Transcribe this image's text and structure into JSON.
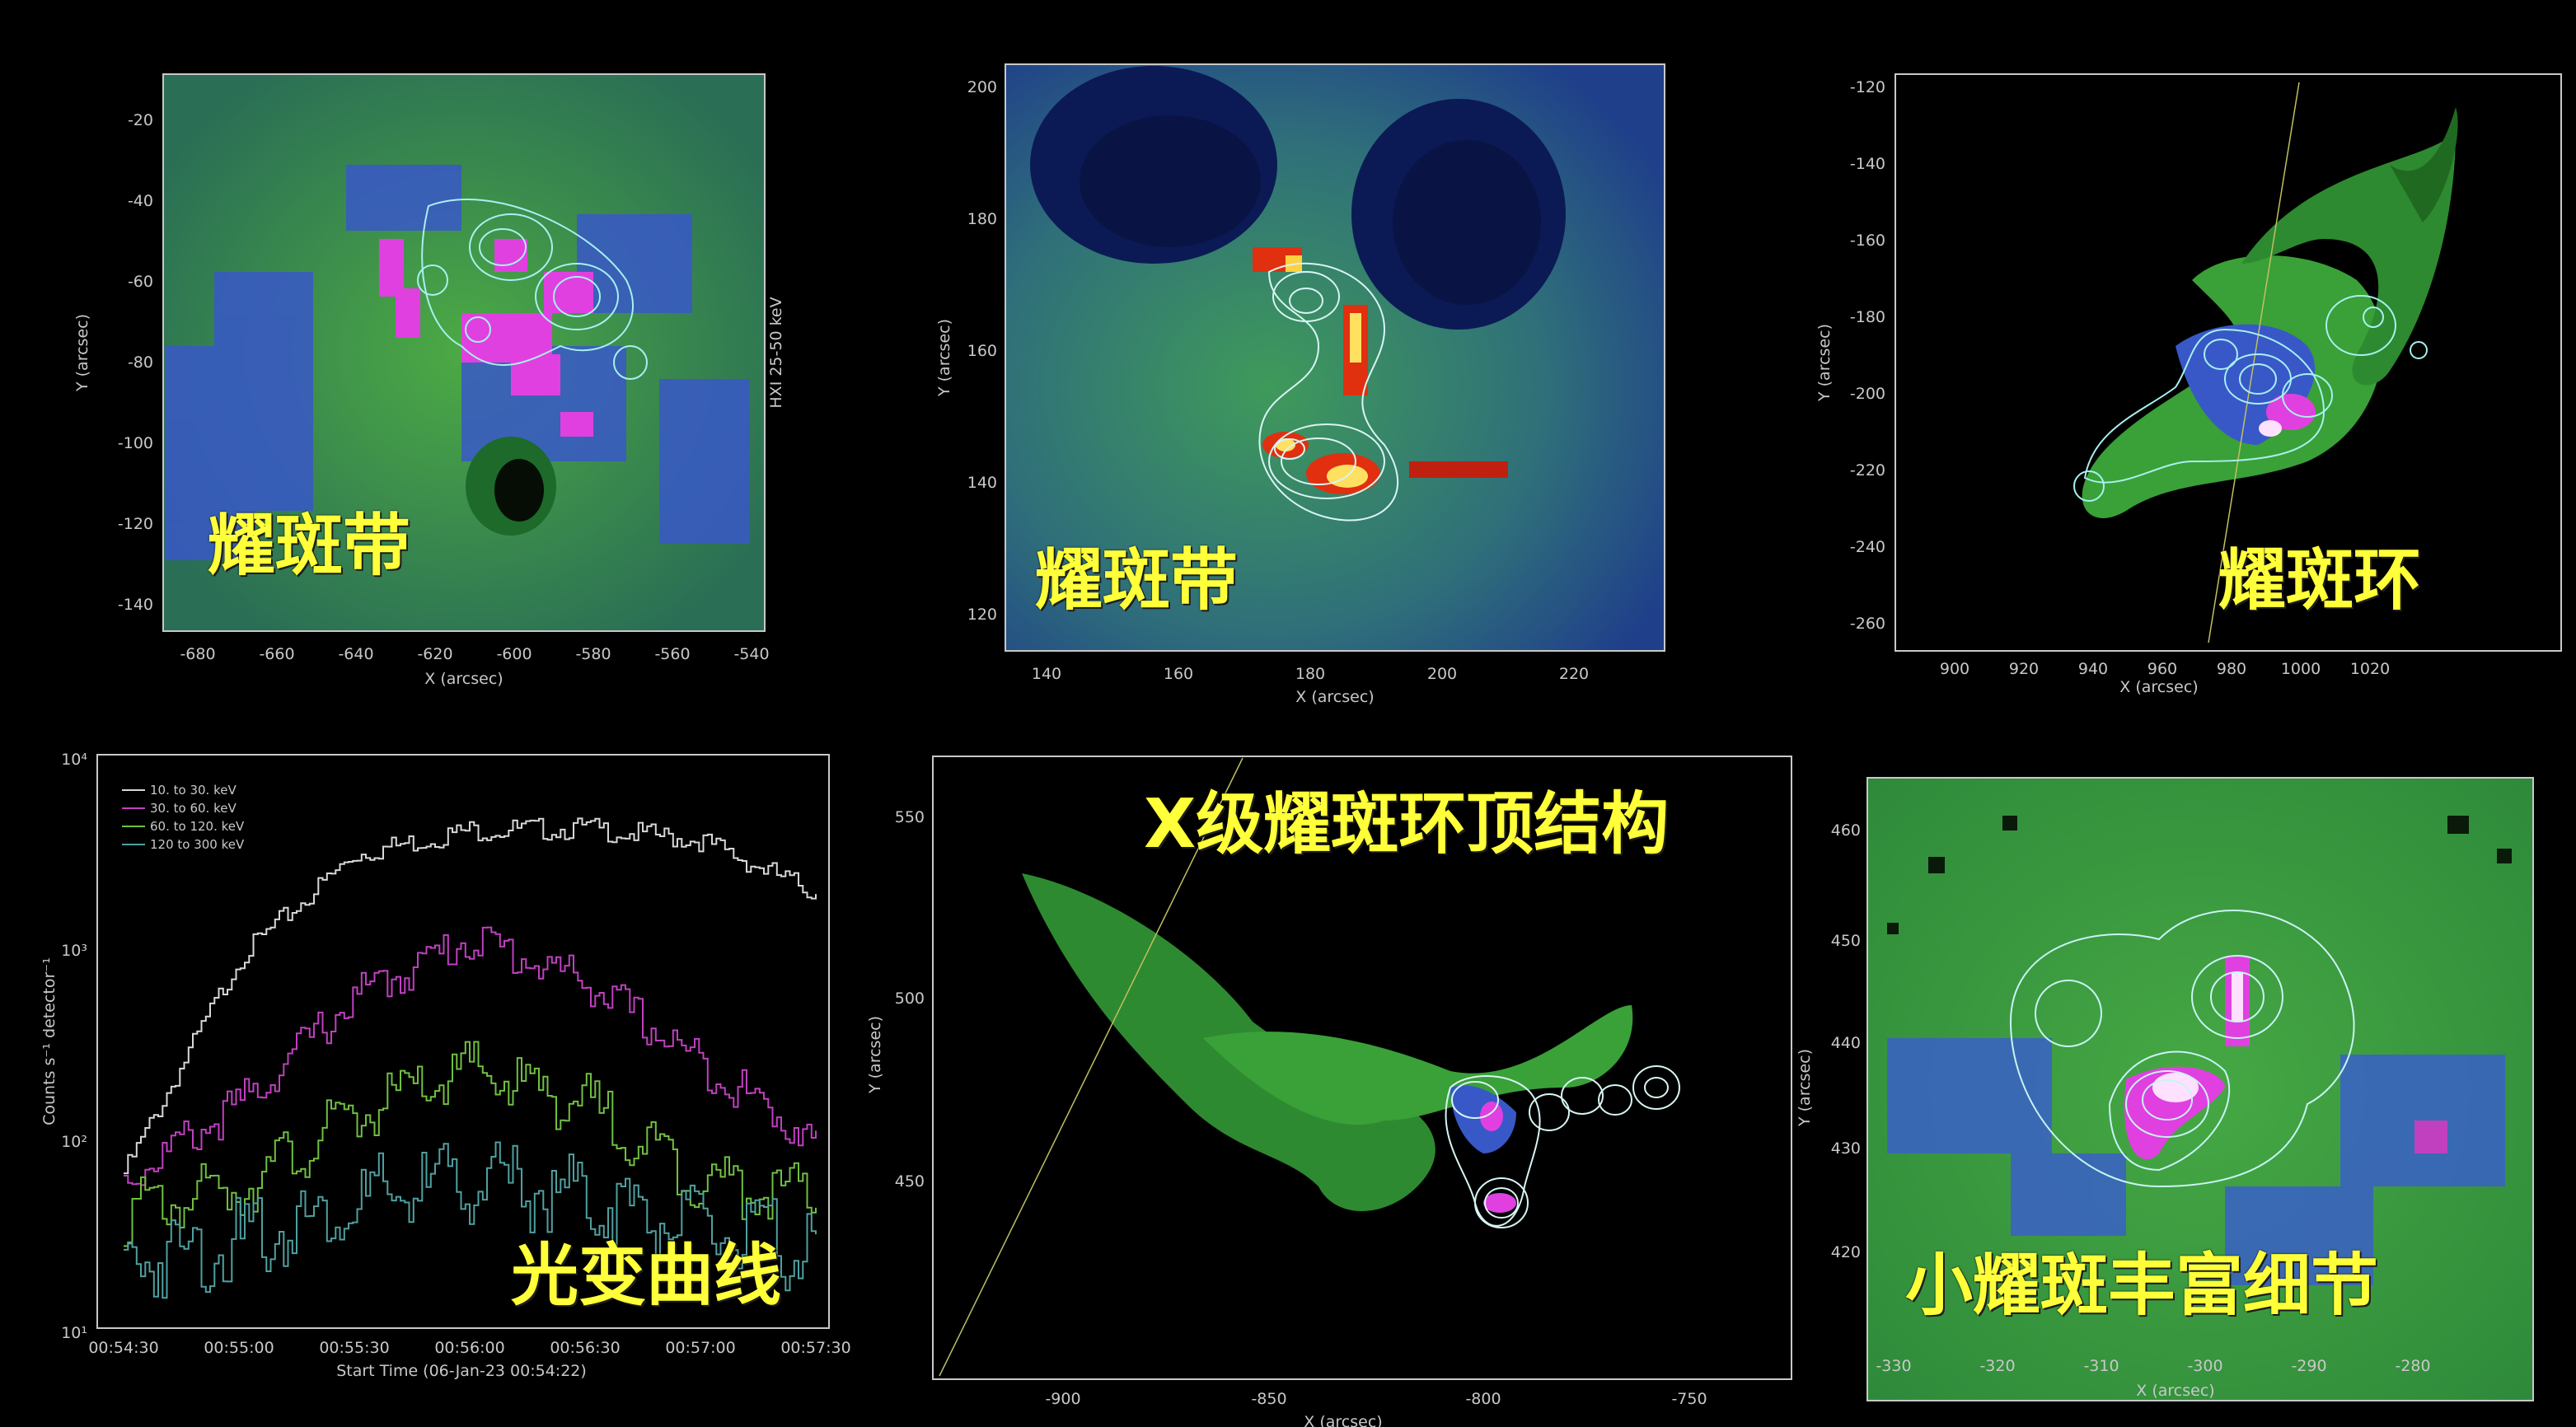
{
  "colors": {
    "background": "#000000",
    "overlay_text": "#ffff3a",
    "axis": "#c8c8c8",
    "contour": "#a8f0f0"
  },
  "panels": {
    "p1": {
      "overlay": "耀斑带",
      "xlabel": "X (arcsec)",
      "ylabel": "Y (arcsec)",
      "right_label": "HXI 25-50 keV",
      "xticks": [
        "-680",
        "-660",
        "-640",
        "-620",
        "-600",
        "-580",
        "-560",
        "-540"
      ],
      "yticks": [
        "-20",
        "-40",
        "-60",
        "-80",
        "-100",
        "-120",
        "-140"
      ]
    },
    "p2": {
      "overlay": "耀斑带",
      "xlabel": "X (arcsec)",
      "ylabel": "Y (arcsec)",
      "xticks": [
        "140",
        "160",
        "180",
        "200",
        "220"
      ],
      "yticks": [
        "200",
        "180",
        "160",
        "140",
        "120"
      ]
    },
    "p3": {
      "overlay": "耀斑环",
      "xlabel": "X (arcsec)",
      "ylabel": "Y (arcsec)",
      "xticks": [
        "900",
        "920",
        "940",
        "960",
        "980",
        "1000",
        "1020"
      ],
      "yticks": [
        "-120",
        "-140",
        "-160",
        "-180",
        "-200",
        "-220",
        "-240",
        "-260"
      ]
    },
    "p4": {
      "overlay": "光变曲线",
      "xlabel": "Start Time (06-Jan-23 00:54:22)",
      "ylabel": "Counts s⁻¹ detector⁻¹",
      "xticks": [
        "00:54:30",
        "00:55:00",
        "00:55:30",
        "00:56:00",
        "00:56:30",
        "00:57:00",
        "00:57:30"
      ],
      "yticks": [
        "10⁴",
        "10³",
        "10²",
        "10¹"
      ]
    },
    "p5": {
      "overlay": "X级耀斑环顶结构",
      "xlabel": "X (arcsec)",
      "ylabel": "Y (arcsec)",
      "xticks": [
        "-900",
        "-850",
        "-800",
        "-750"
      ],
      "yticks": [
        "550",
        "500",
        "450"
      ]
    },
    "p6": {
      "overlay": "小耀斑丰富细节",
      "xlabel": "X (arcsec)",
      "ylabel": "Y (arcsec)",
      "xticks": [
        "-330",
        "-320",
        "-310",
        "-300",
        "-290",
        "-280"
      ],
      "yticks": [
        "460",
        "450",
        "440",
        "430",
        "420"
      ]
    }
  },
  "chart_data": {
    "type": "line",
    "log_scale_y": true,
    "ylim": [
      10,
      10000
    ],
    "x": [
      "00:54:30",
      "00:55:00",
      "00:55:30",
      "00:56:00",
      "00:56:30",
      "00:57:00",
      "00:57:30"
    ],
    "series": [
      {
        "name": "10. to 30. keV",
        "color": "#d8d8d8",
        "values": [
          65,
          900,
          3200,
          4300,
          4400,
          3800,
          2000
        ]
      },
      {
        "name": "30. to 60. keV",
        "color": "#c040c0",
        "values": [
          60,
          150,
          560,
          1150,
          680,
          250,
          95
        ]
      },
      {
        "name": "60. to 120. keV",
        "color": "#70c040",
        "values": [
          40,
          55,
          130,
          230,
          150,
          60,
          48
        ]
      },
      {
        "name": "120 to 300 keV",
        "color": "#50a0a0",
        "values": [
          22,
          28,
          45,
          60,
          48,
          32,
          25
        ]
      }
    ]
  }
}
